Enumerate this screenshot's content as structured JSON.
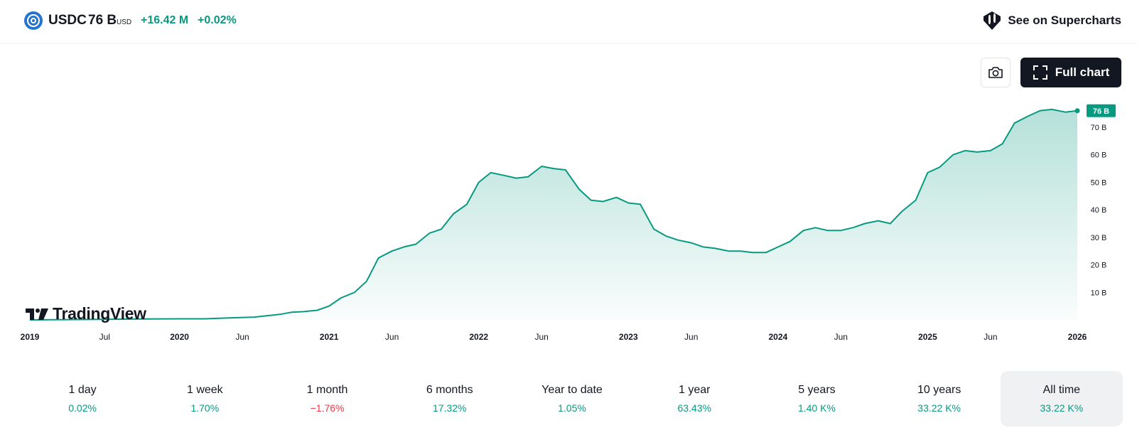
{
  "header": {
    "symbol": "USDC",
    "price": "76 B",
    "currency": "USD",
    "change_abs": "+16.42 M",
    "change_pct": "+0.02%",
    "supercharts_label": "See on Supercharts",
    "icons": {
      "coin": "usdc-coin-icon",
      "supercharts": "supercharts-icon"
    }
  },
  "toolbar": {
    "full_chart_label": "Full chart",
    "icons": {
      "camera": "camera-icon",
      "fullscreen": "fullscreen-icon"
    }
  },
  "branding": {
    "logo_text": "TradingView"
  },
  "colors": {
    "line": "#089981",
    "fill": "#089981",
    "positive": "#089981",
    "negative": "#f23645"
  },
  "chart_data": {
    "type": "area",
    "title": "",
    "xlabel": "",
    "ylabel": "",
    "unit": "B",
    "x_range": [
      2019.0,
      2026.0
    ],
    "ylim": [
      0,
      77.5
    ],
    "grid": false,
    "legend": "none",
    "last_value_label": "76 B",
    "y_ticks": [
      {
        "value": 10,
        "label": "10 B"
      },
      {
        "value": 20,
        "label": "20 B"
      },
      {
        "value": 30,
        "label": "30 B"
      },
      {
        "value": 40,
        "label": "40 B"
      },
      {
        "value": 50,
        "label": "50 B"
      },
      {
        "value": 60,
        "label": "60 B"
      },
      {
        "value": 70,
        "label": "70 B"
      }
    ],
    "x_ticks": [
      {
        "value": 2019.0,
        "label": "2019",
        "bold": true
      },
      {
        "value": 2019.5,
        "label": "Jul",
        "bold": false
      },
      {
        "value": 2020.0,
        "label": "2020",
        "bold": true
      },
      {
        "value": 2020.42,
        "label": "Jun",
        "bold": false
      },
      {
        "value": 2021.0,
        "label": "2021",
        "bold": true
      },
      {
        "value": 2021.42,
        "label": "Jun",
        "bold": false
      },
      {
        "value": 2022.0,
        "label": "2022",
        "bold": true
      },
      {
        "value": 2022.42,
        "label": "Jun",
        "bold": false
      },
      {
        "value": 2023.0,
        "label": "2023",
        "bold": true
      },
      {
        "value": 2023.42,
        "label": "Jun",
        "bold": false
      },
      {
        "value": 2024.0,
        "label": "2024",
        "bold": true
      },
      {
        "value": 2024.42,
        "label": "Jun",
        "bold": false
      },
      {
        "value": 2025.0,
        "label": "2025",
        "bold": true
      },
      {
        "value": 2025.42,
        "label": "Jun",
        "bold": false
      },
      {
        "value": 2026.0,
        "label": "2026",
        "bold": true
      }
    ],
    "series": [
      {
        "points": [
          [
            2019.0,
            0.0
          ],
          [
            2019.25,
            0.1
          ],
          [
            2019.5,
            0.2
          ],
          [
            2019.75,
            0.3
          ],
          [
            2020.0,
            0.4
          ],
          [
            2020.17,
            0.4
          ],
          [
            2020.33,
            0.7
          ],
          [
            2020.5,
            1.0
          ],
          [
            2020.58,
            1.5
          ],
          [
            2020.67,
            2.0
          ],
          [
            2020.75,
            2.8
          ],
          [
            2020.83,
            3.0
          ],
          [
            2020.92,
            3.5
          ],
          [
            2021.0,
            5.0
          ],
          [
            2021.08,
            8.0
          ],
          [
            2021.17,
            10.0
          ],
          [
            2021.25,
            14.0
          ],
          [
            2021.33,
            22.5
          ],
          [
            2021.42,
            25.0
          ],
          [
            2021.5,
            26.5
          ],
          [
            2021.58,
            27.5
          ],
          [
            2021.67,
            31.5
          ],
          [
            2021.75,
            33.0
          ],
          [
            2021.83,
            38.5
          ],
          [
            2021.92,
            42.0
          ],
          [
            2022.0,
            50.0
          ],
          [
            2022.08,
            53.5
          ],
          [
            2022.17,
            52.5
          ],
          [
            2022.25,
            51.5
          ],
          [
            2022.33,
            52.0
          ],
          [
            2022.42,
            55.8
          ],
          [
            2022.5,
            55.0
          ],
          [
            2022.58,
            54.5
          ],
          [
            2022.67,
            47.5
          ],
          [
            2022.75,
            43.5
          ],
          [
            2022.83,
            43.0
          ],
          [
            2022.92,
            44.5
          ],
          [
            2023.0,
            42.5
          ],
          [
            2023.08,
            42.0
          ],
          [
            2023.17,
            33.0
          ],
          [
            2023.25,
            30.5
          ],
          [
            2023.33,
            29.0
          ],
          [
            2023.42,
            28.0
          ],
          [
            2023.5,
            26.5
          ],
          [
            2023.58,
            26.0
          ],
          [
            2023.67,
            25.0
          ],
          [
            2023.75,
            25.0
          ],
          [
            2023.83,
            24.5
          ],
          [
            2023.92,
            24.5
          ],
          [
            2024.0,
            26.5
          ],
          [
            2024.08,
            28.5
          ],
          [
            2024.17,
            32.5
          ],
          [
            2024.25,
            33.5
          ],
          [
            2024.33,
            32.5
          ],
          [
            2024.42,
            32.5
          ],
          [
            2024.5,
            33.5
          ],
          [
            2024.58,
            35.0
          ],
          [
            2024.67,
            36.0
          ],
          [
            2024.75,
            35.0
          ],
          [
            2024.83,
            39.5
          ],
          [
            2024.92,
            43.5
          ],
          [
            2025.0,
            53.5
          ],
          [
            2025.08,
            55.5
          ],
          [
            2025.17,
            60.0
          ],
          [
            2025.25,
            61.5
          ],
          [
            2025.33,
            61.0
          ],
          [
            2025.42,
            61.5
          ],
          [
            2025.5,
            64.0
          ],
          [
            2025.58,
            71.5
          ],
          [
            2025.67,
            74.0
          ],
          [
            2025.75,
            76.0
          ],
          [
            2025.83,
            76.5
          ],
          [
            2025.92,
            75.5
          ],
          [
            2026.0,
            76.0
          ]
        ]
      }
    ]
  },
  "periods": [
    {
      "label": "1 day",
      "value": "0.02%",
      "negative": false,
      "active": false
    },
    {
      "label": "1 week",
      "value": "1.70%",
      "negative": false,
      "active": false
    },
    {
      "label": "1 month",
      "value": "−1.76%",
      "negative": true,
      "active": false
    },
    {
      "label": "6 months",
      "value": "17.32%",
      "negative": false,
      "active": false
    },
    {
      "label": "Year to date",
      "value": "1.05%",
      "negative": false,
      "active": false
    },
    {
      "label": "1 year",
      "value": "63.43%",
      "negative": false,
      "active": false
    },
    {
      "label": "5 years",
      "value": "1.40 K%",
      "negative": false,
      "active": false
    },
    {
      "label": "10 years",
      "value": "33.22 K%",
      "negative": false,
      "active": false
    },
    {
      "label": "All time",
      "value": "33.22 K%",
      "negative": false,
      "active": true
    }
  ]
}
